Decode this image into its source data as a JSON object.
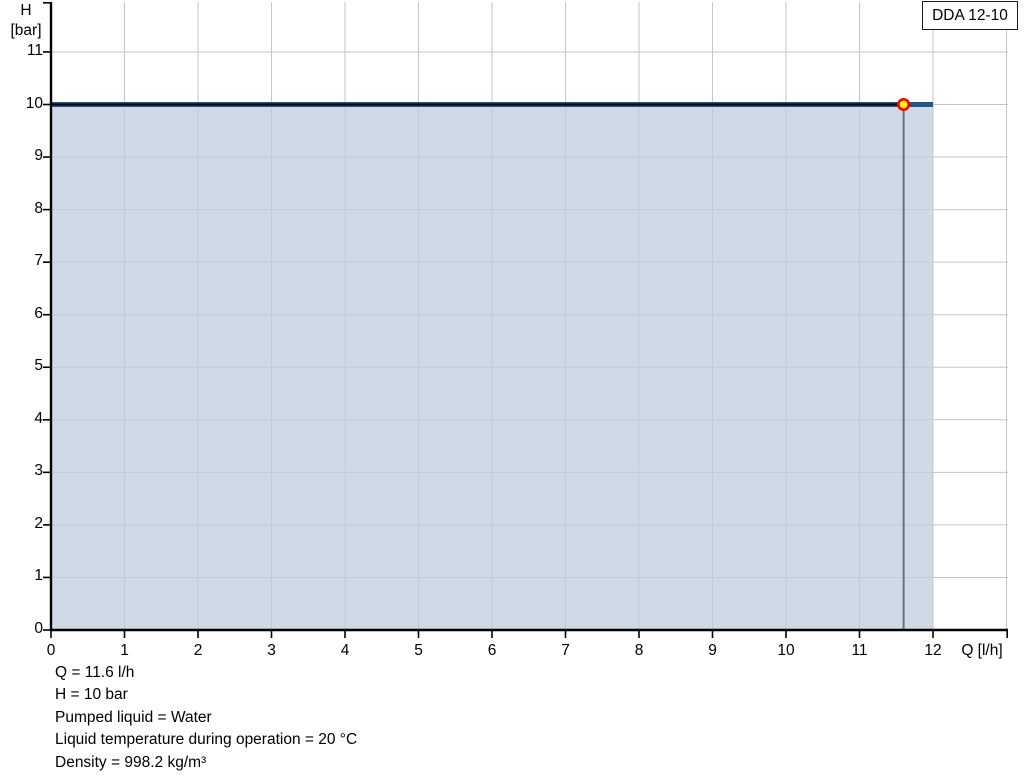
{
  "title_box": {
    "label": "DDA 12-10"
  },
  "axes": {
    "y_title_line1": "H",
    "y_title_line2": "[bar]",
    "x_title": "Q [l/h]"
  },
  "chart_data": {
    "type": "line",
    "title": "DDA 12-10",
    "xlabel": "Q [l/h]",
    "ylabel": "H [bar]",
    "xlim": [
      0,
      13
    ],
    "ylim": [
      0,
      12
    ],
    "x_ticks": [
      0,
      1,
      2,
      3,
      4,
      5,
      6,
      7,
      8,
      9,
      10,
      11,
      12
    ],
    "y_ticks": [
      0,
      1,
      2,
      3,
      4,
      5,
      6,
      7,
      8,
      9,
      10,
      11
    ],
    "grid": true,
    "legend": "none",
    "grid_color": "#c6c6c6",
    "axis_color": "#000000",
    "series": [
      {
        "name": "pump-curve",
        "x": [
          0,
          12
        ],
        "y": [
          10,
          10
        ],
        "color": "#24558a",
        "width": 5
      },
      {
        "name": "duty-range-overlay",
        "x": [
          0,
          11.6
        ],
        "y": [
          10,
          10
        ],
        "color": "#000000",
        "width": 2
      }
    ],
    "area_fill": {
      "x0": 0,
      "x1": 12,
      "y0": 0,
      "y1": 10,
      "color": "#bfcede",
      "opacity": 0.75
    },
    "duty_point": {
      "q": 11.6,
      "h": 10,
      "marker_fill": "#ffff00",
      "marker_stroke": "#ff0000"
    },
    "drop_line": {
      "q": 11.6,
      "h_from": 10,
      "h_to": 0,
      "color": "#6a7480"
    }
  },
  "info_panel": {
    "lines": [
      "Q = 11.6 l/h",
      "H = 10 bar",
      "Pumped liquid = Water",
      "Liquid temperature during operation = 20 °C",
      "Density = 998.2 kg/m³"
    ]
  }
}
